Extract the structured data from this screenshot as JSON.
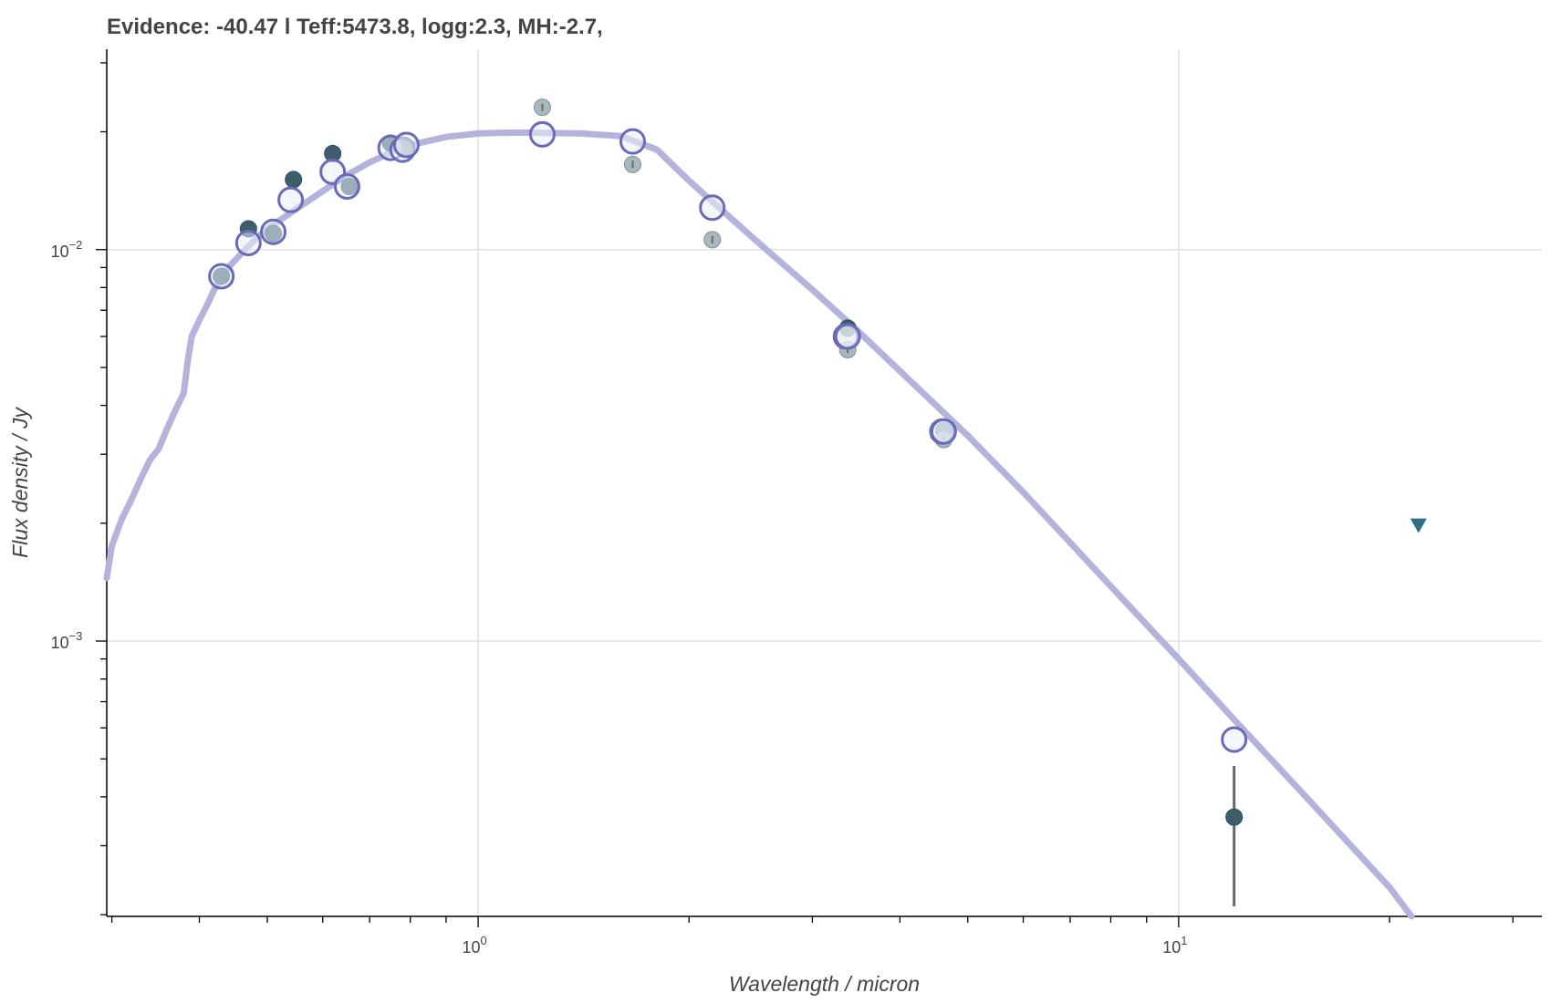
{
  "title": "Evidence: -40.47 l Teff:5473.8, logg:2.3, MH:-2.7,",
  "chart_data": {
    "type": "scatter",
    "title": "Evidence: -40.47 l Teff:5473.8, logg:2.3, MH:-2.7,",
    "xlabel": "Wavelength / micron",
    "ylabel": "Flux density / Jy",
    "xscale": "log",
    "yscale": "log",
    "xlim": [
      0.295,
      33
    ],
    "ylim": [
      0.000198,
      0.0325
    ],
    "grid": true,
    "x_major_ticks": [
      {
        "base": "10",
        "exp": "0",
        "value": 1
      },
      {
        "base": "10",
        "exp": "1",
        "value": 10
      }
    ],
    "y_major_ticks": [
      {
        "base": "10",
        "exp": "−2",
        "value": 0.01
      },
      {
        "base": "10",
        "exp": "−3",
        "value": 0.001
      }
    ],
    "colors": {
      "model": "#b3b3dc",
      "model_point_edge": "#6a6ab8",
      "model_point_fill": "#eaf0fa",
      "observed": "#3b5f6f",
      "observed_excluded": "#9aacb0",
      "upper_limit": "#2f6e88",
      "errorbar": "#666666"
    },
    "model_sed": [
      [
        0.295,
        0.00145
      ],
      [
        0.3,
        0.00175
      ],
      [
        0.31,
        0.00205
      ],
      [
        0.32,
        0.0023
      ],
      [
        0.33,
        0.0026
      ],
      [
        0.34,
        0.0029
      ],
      [
        0.35,
        0.0031
      ],
      [
        0.36,
        0.0035
      ],
      [
        0.37,
        0.0039
      ],
      [
        0.38,
        0.0043
      ],
      [
        0.385,
        0.0052
      ],
      [
        0.39,
        0.006
      ],
      [
        0.4,
        0.0066
      ],
      [
        0.41,
        0.0072
      ],
      [
        0.42,
        0.0079
      ],
      [
        0.43,
        0.0085
      ],
      [
        0.44,
        0.009
      ],
      [
        0.46,
        0.0098
      ],
      [
        0.48,
        0.0106
      ],
      [
        0.5,
        0.0113
      ],
      [
        0.55,
        0.0127
      ],
      [
        0.6,
        0.0141
      ],
      [
        0.65,
        0.0155
      ],
      [
        0.7,
        0.0167
      ],
      [
        0.75,
        0.0177
      ],
      [
        0.8,
        0.0185
      ],
      [
        0.9,
        0.0194
      ],
      [
        1.0,
        0.0198
      ],
      [
        1.1,
        0.0199
      ],
      [
        1.2,
        0.0199
      ],
      [
        1.4,
        0.0198
      ],
      [
        1.6,
        0.0195
      ],
      [
        1.8,
        0.018
      ],
      [
        2.0,
        0.015
      ],
      [
        2.5,
        0.0105
      ],
      [
        3.0,
        0.0079
      ],
      [
        3.5,
        0.00615
      ],
      [
        4.0,
        0.0049
      ],
      [
        5.0,
        0.00335
      ],
      [
        6.0,
        0.0024
      ],
      [
        8.0,
        0.00138
      ],
      [
        10.0,
        0.0009
      ],
      [
        12.0,
        0.00063
      ],
      [
        15.0,
        0.00041
      ],
      [
        20.0,
        0.000235
      ],
      [
        21.5,
        0.000198
      ]
    ],
    "model_points": [
      {
        "x": 0.43,
        "y": 0.00855
      },
      {
        "x": 0.47,
        "y": 0.0104
      },
      {
        "x": 0.51,
        "y": 0.0111
      },
      {
        "x": 0.54,
        "y": 0.0134
      },
      {
        "x": 0.62,
        "y": 0.0158
      },
      {
        "x": 0.65,
        "y": 0.0145
      },
      {
        "x": 0.75,
        "y": 0.0182
      },
      {
        "x": 0.78,
        "y": 0.018
      },
      {
        "x": 0.79,
        "y": 0.0185
      },
      {
        "x": 1.235,
        "y": 0.0197
      },
      {
        "x": 1.662,
        "y": 0.0189
      },
      {
        "x": 2.159,
        "y": 0.0128
      },
      {
        "x": 3.35,
        "y": 0.006
      },
      {
        "x": 3.37,
        "y": 0.006
      },
      {
        "x": 4.6,
        "y": 0.00343
      },
      {
        "x": 4.62,
        "y": 0.00343
      },
      {
        "x": 12.0,
        "y": 0.00056
      }
    ],
    "observed_points": [
      {
        "x": 0.43,
        "y": 0.00855,
        "excluded": false
      },
      {
        "x": 0.47,
        "y": 0.0113,
        "excluded": false
      },
      {
        "x": 0.51,
        "y": 0.011,
        "excluded": false
      },
      {
        "x": 0.545,
        "y": 0.0151,
        "excluded": false
      },
      {
        "x": 0.62,
        "y": 0.0176,
        "excluded": false
      },
      {
        "x": 0.655,
        "y": 0.0145,
        "excluded": false
      },
      {
        "x": 0.75,
        "y": 0.0187,
        "excluded": false
      },
      {
        "x": 0.79,
        "y": 0.0183,
        "excluded": false
      },
      {
        "x": 1.235,
        "y": 0.0231,
        "excluded": true
      },
      {
        "x": 1.662,
        "y": 0.0165,
        "excluded": true
      },
      {
        "x": 2.159,
        "y": 0.0106,
        "excluded": true
      },
      {
        "x": 3.37,
        "y": 0.0063,
        "excluded": false
      },
      {
        "x": 3.37,
        "y": 0.00555,
        "excluded": true
      },
      {
        "x": 4.62,
        "y": 0.00345,
        "excluded": false
      },
      {
        "x": 4.62,
        "y": 0.00327,
        "excluded": true
      },
      {
        "x": 12.0,
        "y": 0.000355,
        "excluded": false,
        "yerr_low": 0.000145,
        "yerr_high": 0.000125
      }
    ],
    "upper_limits": [
      {
        "x": 22.0,
        "y": 0.00197
      }
    ]
  }
}
